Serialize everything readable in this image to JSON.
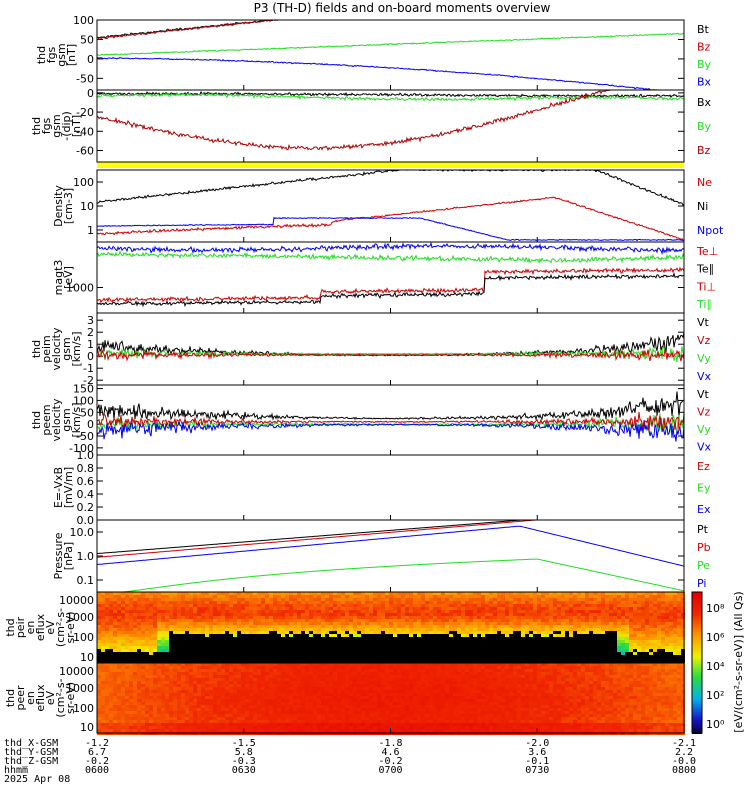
{
  "title": "P3 (TH-D) fields and on-board moments overview",
  "colors": {
    "black": "#000000",
    "red": "#cc0000",
    "darkred": "#aa0000",
    "green": "#22dd22",
    "blue": "#0000ee",
    "yellow": "#ffff00"
  },
  "chart_data": {
    "type": "line",
    "x_ticks_hhmm": [
      "0600",
      "0630",
      "0700",
      "0730",
      "0800"
    ],
    "date": "2025 Apr 08",
    "ephemeris": {
      "labels": [
        "thd_X-GSM",
        "thd_Y-GSM",
        "thd_Z-GSM",
        "hhmm"
      ],
      "X": [
        "-1.2",
        "-1.5",
        "-1.8",
        "-2.0",
        "-2.1"
      ],
      "Y": [
        "6.7",
        "5.8",
        "4.6",
        "3.6",
        "2.2"
      ],
      "Z": [
        "-0.2",
        "-0.3",
        "-0.2",
        "-0.1",
        "-0.0"
      ]
    },
    "panels": [
      {
        "id": "fgs",
        "ylabel": [
          "thd",
          "fgs",
          "gsm",
          "[nT]"
        ],
        "yticks": [
          "100",
          "50",
          "0",
          "-50"
        ],
        "ylim": [
          -80,
          100
        ],
        "legend": [
          {
            "text": "Bt",
            "color": "black"
          },
          {
            "text": "Bz",
            "color": "red"
          },
          {
            "text": "By",
            "color": "green"
          },
          {
            "text": "Bx",
            "color": "blue"
          }
        ]
      },
      {
        "id": "fgs_dsl",
        "ylabel": [
          "thd",
          "fgs",
          "gsm",
          "-(dip)",
          "[nT]"
        ],
        "yticks": [
          "0",
          "-20",
          "-40",
          "-60"
        ],
        "ylim": [
          -72,
          3
        ],
        "legend": [
          {
            "text": "Bx",
            "color": "black"
          },
          {
            "text": "By",
            "color": "green"
          },
          {
            "text": "Bz",
            "color": "darkred"
          }
        ]
      },
      {
        "id": "density",
        "ylabel": [
          "Density",
          "[cm-3]"
        ],
        "yticks": [
          "100",
          "10",
          "1"
        ],
        "log": true,
        "legend": [
          {
            "text": "Ne",
            "color": "red"
          },
          {
            "text": "Ni",
            "color": "black"
          },
          {
            "text": "Npot",
            "color": "blue"
          }
        ]
      },
      {
        "id": "temp",
        "ylabel": [
          "magt3",
          "[eV]"
        ],
        "yticks": [
          "1000"
        ],
        "log": true,
        "legend": [
          {
            "text": "Te⊥",
            "color": "red"
          },
          {
            "text": "Te∥",
            "color": "black"
          },
          {
            "text": "Ti⊥",
            "color": "red"
          },
          {
            "text": "Ti∥",
            "color": "green"
          }
        ]
      },
      {
        "id": "peim",
        "ylabel": [
          "thd",
          "peim",
          "velocity",
          "gsm",
          "[km/s]"
        ],
        "yticks": [
          "3",
          "2",
          "1",
          "0",
          "-1",
          "-2"
        ],
        "ylim": [
          -2.4,
          3.6
        ],
        "legend": [
          {
            "text": "Vt",
            "color": "black"
          },
          {
            "text": "Vz",
            "color": "red"
          },
          {
            "text": "Vy",
            "color": "green"
          },
          {
            "text": "Vx",
            "color": "blue"
          }
        ]
      },
      {
        "id": "peem",
        "ylabel": [
          "thd",
          "peem",
          "velocity",
          "gsm",
          "[km/s]"
        ],
        "yticks": [
          "150",
          "100",
          "50",
          "0",
          "-50",
          "-100"
        ],
        "ylim": [
          -130,
          165
        ],
        "legend": [
          {
            "text": "Vt",
            "color": "black"
          },
          {
            "text": "Vz",
            "color": "red"
          },
          {
            "text": "Vy",
            "color": "green"
          },
          {
            "text": "Vx",
            "color": "blue"
          }
        ]
      },
      {
        "id": "efield",
        "ylabel": [
          "E=-VxB",
          "[mV/m]"
        ],
        "yticks": [
          "1.0",
          "0.8",
          "0.6",
          "0.4",
          "0.2",
          "0.0"
        ],
        "ylim": [
          0,
          1
        ],
        "legend": [
          {
            "text": "Ez",
            "color": "red"
          },
          {
            "text": "Ey",
            "color": "green"
          },
          {
            "text": "Ex",
            "color": "blue"
          }
        ]
      },
      {
        "id": "pressure",
        "ylabel": [
          "Pressure",
          "[nPa]"
        ],
        "yticks": [
          "10.0",
          "1.0",
          "0.1"
        ],
        "log": true,
        "legend": [
          {
            "text": "Pt",
            "color": "black"
          },
          {
            "text": "Pb",
            "color": "red"
          },
          {
            "text": "Pe",
            "color": "green"
          },
          {
            "text": "Pi",
            "color": "blue"
          }
        ]
      },
      {
        "id": "peir",
        "ylabel": [
          "thd",
          "peir",
          "en",
          "eflux",
          "eV",
          "(cm²-s-",
          "sr-eV)"
        ],
        "yticks": [
          "10000",
          "1000",
          "100",
          "10"
        ],
        "spectrogram": true
      },
      {
        "id": "peer",
        "ylabel": [
          "thd",
          "peer",
          "en",
          "eflux",
          "eV",
          "(cm²-s-",
          "sr-eV)"
        ],
        "yticks": [
          "10000",
          "1000",
          "100",
          "10"
        ],
        "spectrogram": true
      }
    ],
    "colorbar": {
      "ticks": [
        "10⁸",
        "10⁶",
        "10⁴",
        "10²",
        "10⁰"
      ],
      "label": "[eV/(cm²-s-sr-eV)] (All Qs)"
    }
  }
}
